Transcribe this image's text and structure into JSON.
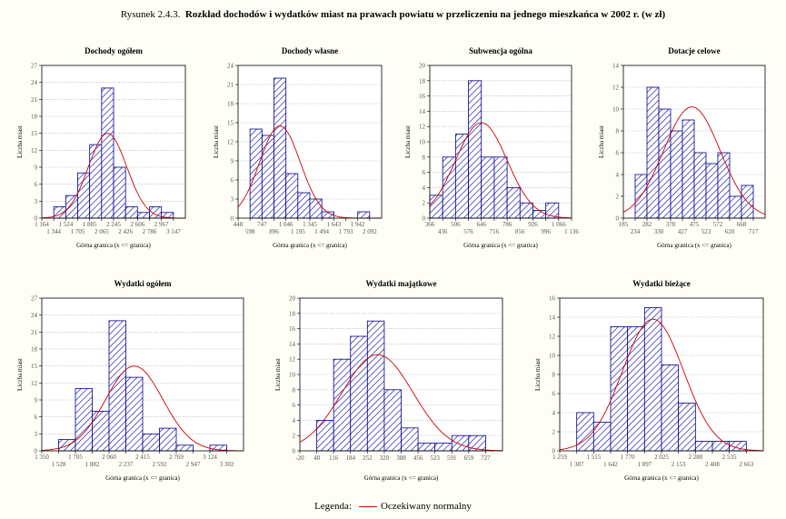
{
  "figure": {
    "prefix": "Rysunek 2.4.3.",
    "title": "Rozkład dochodów i wydatków miast na prawach powiatu w przeliczeniu na jednego mieszkańca w 2002 r. (w zł)"
  },
  "legend": {
    "label": "Legenda:",
    "entry": "Oczekiwany normalny",
    "color": "#d00000"
  },
  "colors": {
    "bar_stroke": "#00008b",
    "hatch": "#1f1fb0",
    "curve": "#d00000",
    "grid": "#9a9a9a"
  },
  "chart_data": [
    {
      "type": "bar",
      "title": "Dochody ogółem",
      "ylabel": "Liczba miast",
      "xlabel": "Górna granica (x <= granica)",
      "ylim": [
        0,
        27
      ],
      "yticks": [
        0,
        3,
        6,
        9,
        12,
        15,
        18,
        21,
        24,
        27
      ],
      "grid": true,
      "bin_count": 12,
      "values": [
        0,
        2,
        4,
        8,
        13,
        23,
        9,
        2,
        1,
        2,
        1,
        0
      ],
      "normal": {
        "peak": 15,
        "center": 5,
        "sd": 1.6
      },
      "tick_labels_top": [
        "1 164",
        "1 524",
        "1 885",
        "2 245",
        "2 606",
        "2 967"
      ],
      "tick_labels_bottom": [
        "1 344",
        "1 705",
        "2 065",
        "2 426",
        "2 786",
        "3 147"
      ]
    },
    {
      "type": "bar",
      "title": "Dochody własne",
      "ylabel": "Liczba miast",
      "xlabel": "Górna granica (x <= granica)",
      "ylim": [
        0,
        24
      ],
      "yticks": [
        0,
        3,
        6,
        9,
        12,
        15,
        18,
        21,
        24
      ],
      "grid": true,
      "bin_count": 12,
      "values": [
        0,
        14,
        13,
        22,
        7,
        4,
        3,
        1,
        0,
        0,
        1,
        0
      ],
      "normal": {
        "peak": 14.5,
        "center": 3,
        "sd": 1.7
      },
      "tick_labels_top": [
        "448",
        "747",
        "1 046",
        "1 345",
        "1 643",
        "1 942"
      ],
      "tick_labels_bottom": [
        "598",
        "896",
        "1 195",
        "1 494",
        "1 793",
        "2 092"
      ]
    },
    {
      "type": "bar",
      "title": "Subwencja ogólna",
      "ylabel": "Liczba miast",
      "xlabel": "Górna granica (x <= granica)",
      "ylim": [
        0,
        20
      ],
      "yticks": [
        0,
        2,
        4,
        6,
        8,
        10,
        12,
        14,
        16,
        18,
        20
      ],
      "grid": true,
      "bin_count": 11,
      "values": [
        3,
        8,
        11,
        18,
        8,
        8,
        4,
        2,
        1,
        2,
        0
      ],
      "normal": {
        "peak": 12.5,
        "center": 3.5,
        "sd": 2
      },
      "tick_labels_top": [
        "366",
        "506",
        "646",
        "786",
        "926",
        "1 066"
      ],
      "tick_labels_bottom": [
        "436",
        "576",
        "716",
        "856",
        "996",
        "1 136"
      ]
    },
    {
      "type": "bar",
      "title": "Dotacje celowe",
      "ylabel": "Liczba miast",
      "xlabel": "Górna granica (x <= granica)",
      "ylim": [
        0,
        14
      ],
      "yticks": [
        0,
        2,
        4,
        6,
        8,
        10,
        12,
        14
      ],
      "grid": true,
      "bin_count": 12,
      "values": [
        0,
        4,
        12,
        10,
        8,
        9,
        6,
        5,
        6,
        2,
        3,
        0
      ],
      "normal": {
        "peak": 10.2,
        "center": 5.3,
        "sd": 2.4
      },
      "tick_labels_top": [
        "185",
        "282",
        "378",
        "475",
        "572",
        "668"
      ],
      "tick_labels_bottom": [
        "234",
        "330",
        "427",
        "523",
        "620",
        "717"
      ]
    },
    {
      "type": "bar",
      "title": "Wydatki ogółem",
      "ylabel": "Liczba miast",
      "xlabel": "Górna granica (x <= granica)",
      "ylim": [
        0,
        27
      ],
      "yticks": [
        0,
        3,
        6,
        9,
        12,
        15,
        18,
        21,
        24,
        27
      ],
      "grid": true,
      "bin_count": 12,
      "values": [
        0,
        2,
        11,
        7,
        23,
        13,
        3,
        4,
        1,
        0,
        1,
        0
      ],
      "normal": {
        "peak": 15,
        "center": 5,
        "sd": 1.7
      },
      "tick_labels_top": [
        "1 350",
        "1 705",
        "2 060",
        "2 415",
        "2 769",
        "3 124"
      ],
      "tick_labels_bottom": [
        "1 528",
        "1 882",
        "2 237",
        "2 592",
        "2 947",
        "3 302"
      ]
    },
    {
      "type": "bar",
      "title": "Wydatki majątkowe",
      "ylabel": "Liczba miast",
      "xlabel": "Górna granica (x <= granica)",
      "ylim": [
        0,
        20
      ],
      "yticks": [
        0,
        2,
        4,
        6,
        8,
        10,
        12,
        14,
        16,
        18,
        20
      ],
      "grid": true,
      "bin_count": 12,
      "values": [
        0,
        4,
        12,
        15,
        17,
        8,
        3,
        1,
        1,
        2,
        2,
        0
      ],
      "normal": {
        "peak": 12.6,
        "center": 4.1,
        "sd": 2.1
      },
      "tick_labels": [
        "-20",
        "48",
        "116",
        "184",
        "252",
        "320",
        "388",
        "456",
        "523",
        "591",
        "659",
        "727"
      ]
    },
    {
      "type": "bar",
      "title": "Wydatki bieżące",
      "ylabel": "Liczba miast",
      "xlabel": "Górna granica (x <= granica)",
      "ylim": [
        0,
        16
      ],
      "yticks": [
        0,
        2,
        4,
        6,
        8,
        10,
        12,
        14,
        16
      ],
      "grid": true,
      "bin_count": 12,
      "values": [
        0,
        4,
        3,
        13,
        13,
        15,
        9,
        5,
        1,
        1,
        1,
        0
      ],
      "normal": {
        "peak": 13.8,
        "center": 5,
        "sd": 1.8
      },
      "tick_labels_top": [
        "1 259",
        "1 515",
        "1 770",
        "2 025",
        "2 280",
        "2 535"
      ],
      "tick_labels_bottom": [
        "1 387",
        "1 642",
        "1 897",
        "2 153",
        "2 408",
        "2 663"
      ]
    }
  ]
}
